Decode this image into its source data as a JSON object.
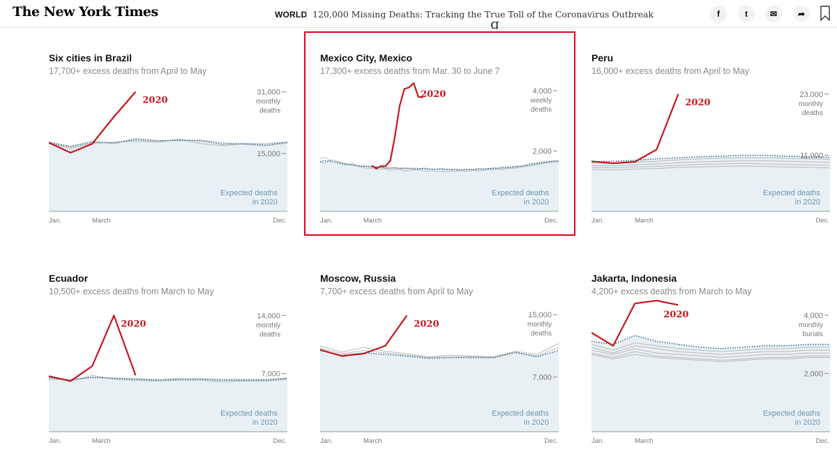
{
  "header": {
    "logo": "The New York Times",
    "section": "WORLD",
    "headline": "120,000 Missing Deaths: Tracking the True Toll of the Coronavirus Outbreak",
    "share_icons": [
      "facebook-icon",
      "twitter-icon",
      "email-icon",
      "share-icon"
    ],
    "share_glyphs": [
      "f",
      "t",
      "✉",
      "➦"
    ],
    "bookmark_icon": "bookmark-icon"
  },
  "colors": {
    "line_2020": "#c4161c",
    "expected": "#2d6a8e",
    "expected_fill": "#e8f0f4",
    "past_years": "#b9b9b9",
    "highlight": "#e0001b"
  },
  "chart_data": [
    {
      "type": "line",
      "title": "Six cities in Brazil",
      "subtitle": "17,700+ excess deaths from April to May",
      "yticks": [
        15000,
        31000
      ],
      "ytick_labels": [
        "15,000",
        "31,000"
      ],
      "unit": [
        "monthly",
        "deaths"
      ],
      "xlabels": [
        "Jan.",
        "March",
        "Dec."
      ],
      "ylim": [
        0,
        34000
      ],
      "series_label": "2020",
      "expected_label": [
        "Expected deaths",
        "in 2020"
      ],
      "y_2020": [
        17800,
        15200,
        17500,
        24500,
        31000
      ],
      "x_2020": [
        0,
        1,
        2,
        3,
        4
      ],
      "expected": [
        17800,
        16700,
        17900,
        17800,
        18600,
        18200,
        18500,
        18300,
        17400,
        17600,
        17200,
        17900
      ],
      "past": [
        [
          17600,
          16300,
          17600,
          17900,
          18200,
          17900,
          18700,
          17600,
          17000,
          17500,
          17600,
          17900
        ],
        [
          18000,
          16900,
          18200,
          17500,
          18900,
          18400,
          18300,
          18500,
          17800,
          17300,
          17000,
          17700
        ]
      ],
      "highlighted": false
    },
    {
      "type": "line",
      "title": "Mexico City, Mexico",
      "subtitle": "17,300+ excess deaths from Mar. 30 to June 7",
      "yticks": [
        2000,
        4000
      ],
      "ytick_labels": [
        "2,000",
        "4,000"
      ],
      "unit": [
        "weekly",
        "deaths"
      ],
      "xlabels": [
        "Jan.",
        "March",
        "Dec."
      ],
      "ylim": [
        0,
        4350
      ],
      "series_label": "2020",
      "expected_label": [
        "Expected deaths",
        "in 2020"
      ],
      "x_2020": [
        11,
        12,
        13,
        14,
        15,
        16,
        17,
        18,
        19,
        20,
        21,
        22
      ],
      "y_2020": [
        1520,
        1420,
        1500,
        1500,
        1680,
        2500,
        3500,
        4060,
        4110,
        4250,
        3800,
        3780
      ],
      "expected": [
        1650,
        1680,
        1660,
        1640,
        1600,
        1580,
        1560,
        1540,
        1520,
        1500,
        1490,
        1480,
        1470,
        1460,
        1450,
        1440,
        1440,
        1430,
        1430,
        1430,
        1420,
        1420,
        1410,
        1400,
        1400,
        1400,
        1400,
        1390,
        1390,
        1380,
        1380,
        1380,
        1390,
        1390,
        1400,
        1400,
        1410,
        1420,
        1430,
        1440,
        1450,
        1460,
        1480,
        1500,
        1520,
        1550,
        1580,
        1600,
        1620,
        1640,
        1650,
        1660
      ],
      "past": [
        [
          1750,
          1800,
          1700,
          1690,
          1650,
          1600,
          1550,
          1520,
          1500,
          1460,
          1430,
          1420,
          1390,
          1410,
          1400,
          1360,
          1380,
          1390,
          1340,
          1350,
          1370,
          1380,
          1350,
          1330,
          1340,
          1330,
          1330,
          1310,
          1340,
          1320,
          1350,
          1330,
          1340,
          1360,
          1340,
          1360,
          1390,
          1370,
          1400,
          1380,
          1420,
          1430,
          1440,
          1470,
          1490,
          1510,
          1540,
          1560,
          1600,
          1620,
          1640,
          1670
        ],
        [
          1620,
          1600,
          1680,
          1700,
          1620,
          1550,
          1530,
          1590,
          1480,
          1510,
          1500,
          1460,
          1490,
          1470,
          1420,
          1430,
          1450,
          1410,
          1420,
          1410,
          1400,
          1390,
          1440,
          1420,
          1390,
          1400,
          1420,
          1400,
          1380,
          1400,
          1360,
          1400,
          1380,
          1400,
          1420,
          1410,
          1420,
          1440,
          1430,
          1480,
          1460,
          1490,
          1500,
          1490,
          1540,
          1580,
          1600,
          1630,
          1640,
          1660,
          1680,
          1690
        ]
      ],
      "highlighted": true
    },
    {
      "type": "line",
      "title": "Peru",
      "subtitle": "16,000+ excess deaths from April to May",
      "yticks": [
        11000,
        23000
      ],
      "ytick_labels": [
        "11,000",
        "23,000"
      ],
      "unit": [
        "monthly",
        "deaths"
      ],
      "xlabels": [
        "Jan.",
        "March",
        "Dec."
      ],
      "ylim": [
        0,
        25700
      ],
      "series_label": "2020",
      "expected_label": [
        "Expected deaths",
        "in 2020"
      ],
      "x_2020": [
        0,
        1,
        2,
        3,
        4
      ],
      "y_2020": [
        9800,
        9400,
        9700,
        12100,
        23000
      ],
      "expected": [
        9700,
        9800,
        10000,
        10300,
        10500,
        10700,
        10800,
        11000,
        11000,
        10800,
        10700,
        10600
      ],
      "past": [
        [
          9500,
          9400,
          9600,
          9800,
          10100,
          10300,
          10400,
          10500,
          10500,
          10400,
          10300,
          10200
        ],
        [
          9000,
          8900,
          9100,
          9300,
          9500,
          9700,
          9800,
          9900,
          9900,
          9800,
          9700,
          9600
        ],
        [
          8600,
          8500,
          8700,
          8800,
          9000,
          9200,
          9300,
          9400,
          9300,
          9200,
          9100,
          9000
        ],
        [
          8200,
          8100,
          8300,
          8400,
          8600,
          8700,
          8800,
          8900,
          8800,
          8700,
          8600,
          8500
        ]
      ],
      "highlighted": false
    },
    {
      "type": "line",
      "title": "Ecuador",
      "subtitle": "10,500+ excess deaths from March to May",
      "yticks": [
        7000,
        14000
      ],
      "ytick_labels": [
        "7,000",
        "14,000"
      ],
      "unit": [
        "monthly",
        "deaths"
      ],
      "xlabels": [
        "Jan.",
        "March",
        "Dec."
      ],
      "ylim": [
        0,
        15800
      ],
      "series_label": "2020",
      "expected_label": [
        "Expected deaths",
        "in 2020"
      ],
      "x_2020": [
        0,
        1,
        2,
        3,
        4
      ],
      "y_2020": [
        6700,
        6100,
        7900,
        14000,
        6800
      ],
      "expected": [
        6500,
        6200,
        6600,
        6400,
        6300,
        6200,
        6300,
        6300,
        6200,
        6200,
        6200,
        6400
      ],
      "past": [
        [
          6600,
          6100,
          6800,
          6300,
          6200,
          6100,
          6200,
          6200,
          6000,
          6100,
          6100,
          6300
        ],
        [
          6300,
          6300,
          6500,
          6500,
          6400,
          6300,
          6400,
          6400,
          6300,
          6300,
          6300,
          6500
        ]
      ],
      "highlighted": false
    },
    {
      "type": "line",
      "title": "Moscow, Russia",
      "subtitle": "7,700+ excess deaths from April to May",
      "yticks": [
        7000,
        15000
      ],
      "ytick_labels": [
        "7,000",
        "15,000"
      ],
      "unit": [
        "monthly",
        "deaths"
      ],
      "xlabels": [
        "Jan.",
        "March",
        "Dec."
      ],
      "ylim": [
        0,
        16800
      ],
      "series_label": "2020",
      "expected_label": [
        "Expected deaths",
        "in 2020"
      ],
      "x_2020": [
        0,
        1,
        2,
        3,
        4
      ],
      "y_2020": [
        10500,
        9700,
        10000,
        11000,
        14900
      ],
      "expected": [
        10400,
        9800,
        10100,
        9900,
        9700,
        9400,
        9500,
        9500,
        9500,
        10200,
        9600,
        10400
      ],
      "past": [
        [
          11000,
          10200,
          10800,
          10300,
          10000,
          9600,
          9800,
          9700,
          9600,
          10300,
          9900,
          11300
        ],
        [
          10700,
          10000,
          10400,
          10100,
          9800,
          9500,
          9600,
          9600,
          9500,
          10100,
          9700,
          10800
        ]
      ],
      "highlighted": false
    },
    {
      "type": "line",
      "title": "Jakarta, Indonesia",
      "subtitle": "4,200+ excess deaths from March to May",
      "yticks": [
        2000,
        4000
      ],
      "ytick_labels": [
        "2,000",
        "4,000"
      ],
      "unit": [
        "monthly",
        "burials"
      ],
      "xlabels": [
        "Jan.",
        "March",
        "Dec."
      ],
      "ylim": [
        0,
        4500
      ],
      "series_label": "2020",
      "expected_label": [
        "Expected deaths",
        "in 2020"
      ],
      "x_2020": [
        0,
        1,
        2,
        3,
        4
      ],
      "y_2020": [
        3400,
        2950,
        4400,
        4500,
        4350
      ],
      "expected": [
        3100,
        3000,
        3300,
        3100,
        3000,
        2900,
        2850,
        2900,
        2950,
        2950,
        3000,
        3000
      ],
      "past": [
        [
          3000,
          2800,
          3050,
          2950,
          2850,
          2800,
          2750,
          2800,
          2850,
          2850,
          2900,
          2900
        ],
        [
          2900,
          2700,
          2950,
          2850,
          2750,
          2700,
          2650,
          2700,
          2750,
          2750,
          2800,
          2800
        ],
        [
          2800,
          2650,
          2850,
          2700,
          2650,
          2600,
          2550,
          2600,
          2650,
          2650,
          2700,
          2700
        ],
        [
          2700,
          2550,
          2750,
          2600,
          2550,
          2500,
          2450,
          2500,
          2550,
          2550,
          2600,
          2600
        ],
        [
          2650,
          2500,
          2650,
          2550,
          2500,
          2450,
          2400,
          2450,
          2500,
          2500,
          2550,
          2550
        ]
      ],
      "highlighted": false
    }
  ]
}
